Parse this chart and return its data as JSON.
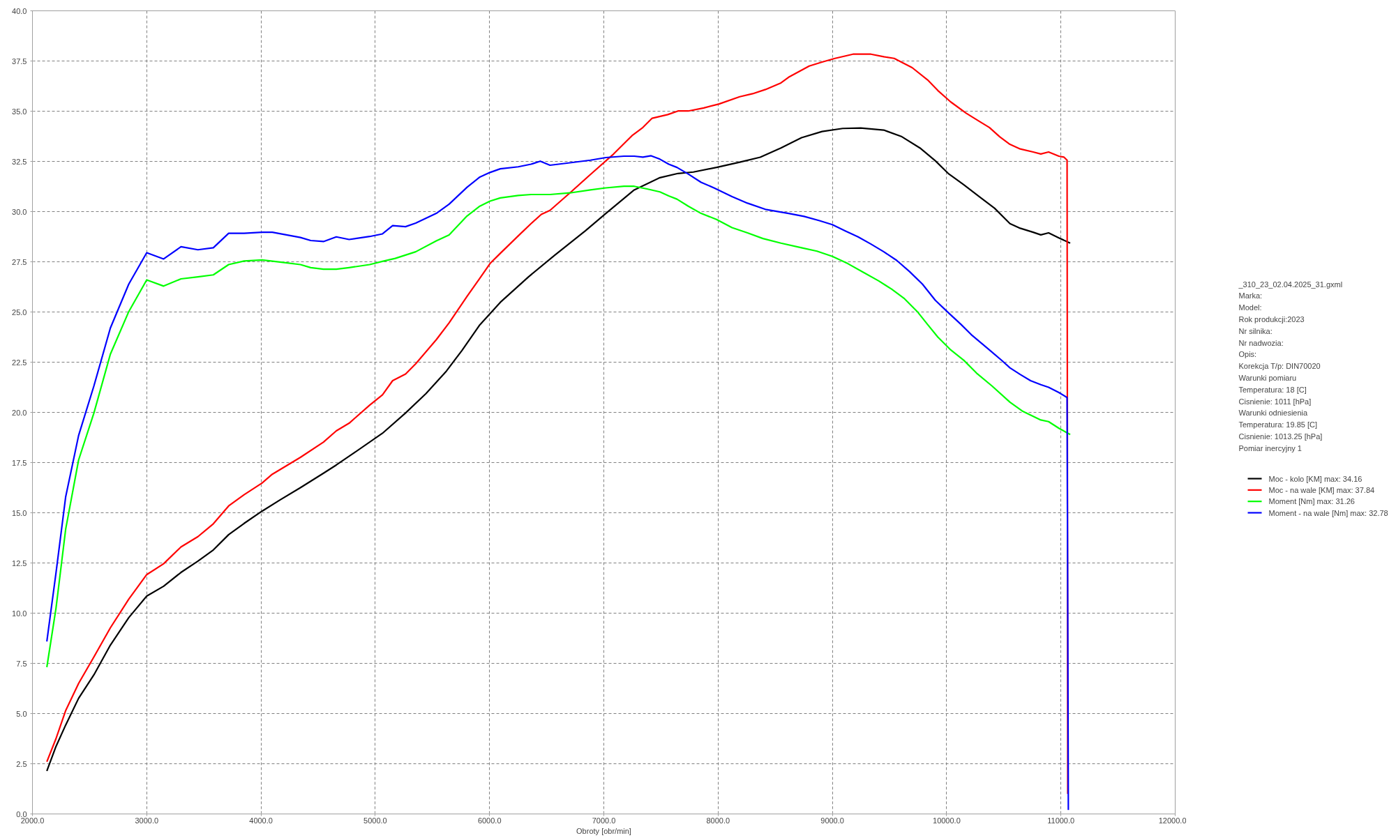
{
  "chart_data": {
    "type": "line",
    "xlabel": "Obroty [obr/min]",
    "grid": true,
    "legend": "right",
    "line_style": "solid",
    "xlim": [
      2000,
      12000
    ],
    "ylim": [
      0,
      40
    ],
    "xticks": [
      {
        "value": 2000,
        "label": "2000.0"
      },
      {
        "value": 3000,
        "label": "3000.0"
      },
      {
        "value": 4000,
        "label": "4000.0"
      },
      {
        "value": 5000,
        "label": "5000.0"
      },
      {
        "value": 6000,
        "label": "6000.0"
      },
      {
        "value": 7000,
        "label": "7000.0"
      },
      {
        "value": 8000,
        "label": "8000.0"
      },
      {
        "value": 9000,
        "label": "9000.0"
      },
      {
        "value": 10000,
        "label": "10000.0"
      },
      {
        "value": 11000,
        "label": "11000.0"
      },
      {
        "value": 12000,
        "label": "12000.0"
      }
    ],
    "yticks": [
      {
        "value": 0,
        "label": "0.0"
      },
      2.5,
      {
        "value": 5,
        "label": "5.0"
      },
      7.5,
      {
        "value": 10,
        "label": "10.0"
      },
      12.5,
      {
        "value": 15,
        "label": "15.0"
      },
      17.5,
      {
        "value": 20,
        "label": "20.0"
      },
      22.5,
      {
        "value": 25,
        "label": "25.0"
      },
      27.5,
      {
        "value": 30,
        "label": "30.0"
      },
      32.5,
      {
        "value": 35,
        "label": "35.0"
      },
      37.5,
      {
        "value": 40,
        "label": "40.0"
      }
    ],
    "annotations": [
      "_310_23_02.04.2025_31.gxml",
      "Marka:",
      "Model:",
      "Rok produkcji:2023",
      "Nr silnika:",
      "Nr nadwozia:",
      "Opis:",
      "Korekcja T/p: DIN70020",
      "Warunki pomiaru",
      "Temperatura: 18 [C]",
      "Cisnienie: 1011 [hPa]",
      "Warunki odniesienia",
      "Temperatura: 19.85 [C]",
      "Cisnienie: 1013.25 [hPa]",
      "Pomiar inercyjny 1"
    ],
    "series": [
      {
        "name": "Moc - kolo [KM] max: 34.16",
        "color": "#000000",
        "x": [
          2126,
          2206,
          2291,
          2404,
          2538,
          2682,
          2843,
          3000,
          3148,
          3300,
          3448,
          3583,
          3717,
          3852,
          4009,
          4166,
          4345,
          4547,
          4659,
          4816,
          5063,
          5265,
          5444,
          5623,
          5758,
          5915,
          6094,
          6341,
          6568,
          6838,
          7018,
          7266,
          7491,
          7649,
          7784,
          7986,
          8189,
          8369,
          8550,
          8730,
          8910,
          9090,
          9248,
          9450,
          9608,
          9766,
          9901,
          10014,
          10149,
          10284,
          10419,
          10554,
          10644,
          10757,
          10824,
          10892,
          10982,
          11081
        ],
        "values": [
          2.14,
          3.36,
          4.43,
          5.76,
          6.93,
          8.41,
          9.78,
          10.85,
          11.34,
          12.03,
          12.59,
          13.15,
          13.91,
          14.47,
          15.08,
          15.64,
          16.25,
          16.97,
          17.38,
          17.99,
          18.96,
          19.97,
          20.94,
          22.06,
          23.08,
          24.36,
          25.48,
          26.75,
          27.82,
          29.04,
          29.91,
          31.08,
          31.69,
          31.9,
          31.97,
          32.2,
          32.46,
          32.71,
          33.17,
          33.68,
          33.99,
          34.14,
          34.16,
          34.06,
          33.73,
          33.17,
          32.53,
          31.9,
          31.34,
          30.75,
          30.17,
          29.4,
          29.17,
          28.97,
          28.84,
          28.94,
          28.69,
          28.43
        ]
      },
      {
        "name": "Moc - na wale [KM] max: 37.84",
        "color": "#ff0000",
        "x": [
          2126,
          2206,
          2291,
          2404,
          2538,
          2682,
          2843,
          3000,
          3148,
          3300,
          3448,
          3583,
          3717,
          3852,
          4009,
          4099,
          4345,
          4547,
          4659,
          4771,
          4951,
          5063,
          5152,
          5265,
          5354,
          5534,
          5646,
          5803,
          5915,
          6004,
          6094,
          6251,
          6363,
          6453,
          6529,
          6703,
          6883,
          7086,
          7252,
          7342,
          7423,
          7559,
          7649,
          7739,
          7874,
          8009,
          8189,
          8302,
          8414,
          8550,
          8617,
          8797,
          8910,
          9023,
          9180,
          9338,
          9450,
          9541,
          9698,
          9833,
          9923,
          10036,
          10171,
          10284,
          10374,
          10464,
          10554,
          10644,
          10757,
          10824,
          10892,
          10982,
          11027,
          11054,
          11060
        ],
        "values": [
          2.6,
          3.75,
          5.15,
          6.5,
          7.82,
          9.27,
          10.7,
          11.92,
          12.46,
          13.3,
          13.81,
          14.45,
          15.34,
          15.9,
          16.48,
          16.92,
          17.76,
          18.52,
          19.08,
          19.46,
          20.36,
          20.87,
          21.58,
          21.91,
          22.42,
          23.62,
          24.46,
          25.78,
          26.68,
          27.41,
          27.92,
          28.79,
          29.4,
          29.86,
          30.06,
          30.93,
          31.85,
          32.87,
          33.81,
          34.19,
          34.65,
          34.83,
          35.01,
          35.01,
          35.16,
          35.36,
          35.72,
          35.87,
          36.08,
          36.41,
          36.69,
          37.25,
          37.45,
          37.63,
          37.84,
          37.84,
          37.71,
          37.63,
          37.17,
          36.56,
          36.03,
          35.46,
          34.9,
          34.5,
          34.19,
          33.73,
          33.35,
          33.12,
          32.97,
          32.87,
          32.97,
          32.76,
          32.71,
          32.56,
          1.0
        ]
      },
      {
        "name": "Moment [Nm] max: 31.26",
        "color": "#00ff00",
        "x": [
          2126,
          2206,
          2291,
          2404,
          2538,
          2682,
          2843,
          3000,
          3148,
          3300,
          3448,
          3583,
          3717,
          3852,
          4009,
          4166,
          4345,
          4435,
          4547,
          4659,
          4771,
          4951,
          5063,
          5175,
          5354,
          5534,
          5646,
          5803,
          5915,
          6004,
          6094,
          6251,
          6363,
          6529,
          6703,
          6883,
          7018,
          7176,
          7266,
          7378,
          7491,
          7568,
          7640,
          7739,
          7851,
          7986,
          8122,
          8257,
          8392,
          8550,
          8730,
          8865,
          9000,
          9135,
          9270,
          9405,
          9518,
          9631,
          9743,
          9833,
          9923,
          10036,
          10149,
          10261,
          10396,
          10554,
          10667,
          10824,
          10892,
          10982,
          11081
        ],
        "values": [
          7.31,
          10.24,
          14.19,
          17.63,
          19.97,
          22.9,
          25.02,
          26.6,
          26.29,
          26.65,
          26.75,
          26.85,
          27.36,
          27.54,
          27.59,
          27.49,
          27.36,
          27.21,
          27.13,
          27.13,
          27.21,
          27.36,
          27.52,
          27.67,
          28.0,
          28.54,
          28.84,
          29.78,
          30.27,
          30.52,
          30.68,
          30.8,
          30.85,
          30.85,
          30.93,
          31.08,
          31.18,
          31.26,
          31.26,
          31.13,
          30.98,
          30.78,
          30.62,
          30.27,
          29.91,
          29.61,
          29.2,
          28.94,
          28.66,
          28.43,
          28.2,
          28.03,
          27.77,
          27.41,
          26.98,
          26.55,
          26.14,
          25.66,
          25.02,
          24.38,
          23.75,
          23.11,
          22.6,
          21.96,
          21.32,
          20.51,
          20.05,
          19.62,
          19.54,
          19.21,
          18.9
        ]
      },
      {
        "name": "Moment - na wale [Nm] max: 32.78",
        "color": "#0000ff",
        "x": [
          2126,
          2206,
          2291,
          2404,
          2538,
          2682,
          2843,
          3000,
          3148,
          3300,
          3448,
          3583,
          3717,
          3852,
          4009,
          4099,
          4345,
          4435,
          4547,
          4659,
          4771,
          4951,
          5063,
          5152,
          5265,
          5354,
          5534,
          5646,
          5803,
          5915,
          6004,
          6094,
          6251,
          6363,
          6444,
          6529,
          6703,
          6883,
          7018,
          7176,
          7266,
          7342,
          7414,
          7491,
          7568,
          7640,
          7739,
          7851,
          7964,
          8122,
          8257,
          8414,
          8617,
          8752,
          8887,
          9000,
          9113,
          9225,
          9338,
          9450,
          9563,
          9676,
          9788,
          9901,
          10014,
          10126,
          10216,
          10374,
          10486,
          10554,
          10644,
          10734,
          10824,
          10892,
          10982,
          11054,
          11065
        ],
        "values": [
          8.59,
          12.0,
          15.8,
          18.85,
          21.32,
          24.2,
          26.39,
          27.95,
          27.64,
          28.25,
          28.1,
          28.2,
          28.92,
          28.92,
          28.97,
          28.97,
          28.71,
          28.56,
          28.51,
          28.74,
          28.61,
          28.76,
          28.89,
          29.3,
          29.25,
          29.43,
          29.91,
          30.37,
          31.21,
          31.72,
          31.95,
          32.13,
          32.23,
          32.36,
          32.51,
          32.31,
          32.43,
          32.56,
          32.69,
          32.76,
          32.76,
          32.71,
          32.78,
          32.61,
          32.36,
          32.2,
          31.87,
          31.46,
          31.18,
          30.75,
          30.42,
          30.11,
          29.91,
          29.76,
          29.55,
          29.35,
          29.04,
          28.74,
          28.38,
          28.0,
          27.57,
          27.01,
          26.39,
          25.58,
          24.97,
          24.38,
          23.87,
          23.11,
          22.57,
          22.22,
          21.89,
          21.58,
          21.38,
          21.25,
          20.99,
          20.74,
          0.2
        ]
      }
    ]
  }
}
